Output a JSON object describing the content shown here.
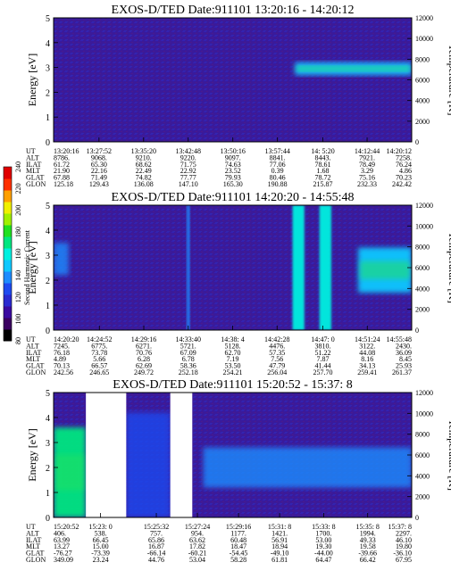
{
  "colorbar": {
    "label": "Second Harmonic Current",
    "ticks": [
      "80",
      "100",
      "120",
      "140",
      "160",
      "180",
      "200",
      "220",
      "240"
    ],
    "colors": [
      "#000000",
      "#3a0060",
      "#3a0aa0",
      "#2a2ad0",
      "#1e4af0",
      "#1e8cff",
      "#10c8ff",
      "#00f0e0",
      "#00e680",
      "#20e020",
      "#a0f000",
      "#f0f000",
      "#ffa000",
      "#ff3000",
      "#e00000"
    ]
  },
  "chart_data": [
    {
      "type": "heatmap",
      "title": "EXOS-D/TED   Date:911101   13:20:16 - 14:20:12",
      "ylabel": "Energy [eV]",
      "ylabel_right": "Temperature [K]",
      "ylim": [
        0,
        5
      ],
      "yticks": [
        "0",
        "1",
        "2",
        "3",
        "4",
        "5"
      ],
      "ylim_right": [
        0,
        12000
      ],
      "yticks_right": [
        "0",
        "2000",
        "4000",
        "6000",
        "8000",
        "10000",
        "12000"
      ],
      "background": "#3a1a9a",
      "features": [
        {
          "kind": "band",
          "x_start": "14:00:40",
          "x_end": "14:20:12",
          "e_low": 2.7,
          "e_high": 3.2,
          "level": "high",
          "color": "#14c8ff"
        }
      ],
      "ephemeris": {
        "labels": [
          "UT",
          "ALT",
          "ILAT",
          "MLT",
          "GLAT",
          "GLON"
        ],
        "columns": [
          [
            "13:20:16",
            "8786.",
            "61.72",
            "21.90",
            "67.88",
            "125.18"
          ],
          [
            "13:27:52",
            "9068.",
            "65.30",
            "22.16",
            "71.49",
            "129.43"
          ],
          [
            "13:35:20",
            "9210.",
            "68.62",
            "22.49",
            "74.82",
            "136.08"
          ],
          [
            "13:42:48",
            "9220.",
            "71.75",
            "22.92",
            "77.77",
            "147.10"
          ],
          [
            "13:50:16",
            "9097.",
            "74.63",
            "23.52",
            "79.93",
            "165.30"
          ],
          [
            "13:57:44",
            "8841.",
            "77.06",
            "0.39",
            "80.46",
            "190.88"
          ],
          [
            "14: 5:20",
            "8443.",
            "78.61",
            "1.68",
            "78.72",
            "215.87"
          ],
          [
            "14:12:44",
            "7921.",
            "78.49",
            "3.29",
            "75.16",
            "232.33"
          ],
          [
            "14:20:12",
            "7258.",
            "76.24",
            "4.86",
            "70.23",
            "242.42"
          ]
        ]
      }
    },
    {
      "type": "heatmap",
      "title": "EXOS-D/TED   Date:911101   14:20:20 - 14:55:48",
      "ylabel": "Energy [eV]",
      "ylabel_right": "Temperature [K]",
      "ylim": [
        0,
        5
      ],
      "yticks": [
        "0",
        "1",
        "2",
        "3",
        "4",
        "5"
      ],
      "ylim_right": [
        0,
        12000
      ],
      "yticks_right": [
        "0",
        "2000",
        "4000",
        "6000",
        "8000",
        "10000",
        "12000"
      ],
      "background": "#3a1a9a",
      "features": [
        {
          "kind": "blob",
          "x_start": "14:20:20",
          "x_end": "14:21:50",
          "e_low": 2.2,
          "e_high": 3.5,
          "level": "medium",
          "color": "#1e8cff"
        },
        {
          "kind": "spike",
          "x_start": "14:33:30",
          "x_end": "14:33:50",
          "e_low": 0,
          "e_high": 5,
          "level": "medium",
          "color": "#1e8cff"
        },
        {
          "kind": "spike",
          "x_start": "14:44:00",
          "x_end": "14:45:10",
          "e_low": 0,
          "e_high": 5,
          "level": "high",
          "color": "#00f0e0"
        },
        {
          "kind": "spike",
          "x_start": "14:46:40",
          "x_end": "14:47:50",
          "e_low": 0,
          "e_high": 5,
          "level": "high",
          "color": "#00f0e0"
        },
        {
          "kind": "blob",
          "x_start": "14:50:30",
          "x_end": "14:55:48",
          "e_low": 1.5,
          "e_high": 3.3,
          "level": "high",
          "color": "#10c8ff"
        }
      ],
      "ephemeris": {
        "labels": [
          "UT",
          "ALT",
          "ILAT",
          "MLT",
          "GLAT",
          "GLON"
        ],
        "columns": [
          [
            "14:20:20",
            "7245.",
            "76.18",
            "4.89",
            "70.13",
            "242.56"
          ],
          [
            "14:24:52",
            "6775.",
            "73.78",
            "5.66",
            "66.57",
            "246.65"
          ],
          [
            "14:29:16",
            "6271.",
            "70.76",
            "6.28",
            "62.69",
            "249.72"
          ],
          [
            "14:33:40",
            "5721.",
            "67.09",
            "6.78",
            "58.36",
            "252.18"
          ],
          [
            "14:38: 4",
            "5128.",
            "62.70",
            "7.19",
            "53.50",
            "254.21"
          ],
          [
            "14:42:28",
            "4476.",
            "57.35",
            "7.56",
            "47.79",
            "256.04"
          ],
          [
            "14:47: 0",
            "3810.",
            "51.22",
            "7.87",
            "41.44",
            "257.70"
          ],
          [
            "14:51:24",
            "3122.",
            "44.08",
            "8.16",
            "34.13",
            "259.41"
          ],
          [
            "14:55:48",
            "2430.",
            "36.09",
            "8.45",
            "25.93",
            "261.37"
          ]
        ]
      }
    },
    {
      "type": "heatmap",
      "title": "EXOS-D/TED   Date:911101   15:20:52 - 15:37: 8",
      "ylabel": "Energy [eV]",
      "ylabel_right": "Temperature [K]",
      "ylim": [
        0,
        5
      ],
      "yticks": [
        "0",
        "1",
        "2",
        "3",
        "4",
        "5"
      ],
      "ylim_right": [
        0,
        12000
      ],
      "yticks_right": [
        "0",
        "2000",
        "4000",
        "6000",
        "8000",
        "10000",
        "12000"
      ],
      "background": "#3a1a9a",
      "gaps": [
        {
          "x_start": "15:22:20",
          "x_end": "15:24:10"
        },
        {
          "x_start": "15:26:10",
          "x_end": "15:27:10"
        }
      ],
      "features": [
        {
          "kind": "block",
          "x_start": "15:20:52",
          "x_end": "15:22:20",
          "e_low": 0,
          "e_high": 3.6,
          "level": "high",
          "color": "#00e680"
        },
        {
          "kind": "block",
          "x_start": "15:24:10",
          "x_end": "15:26:10",
          "e_low": 0,
          "e_high": 4.2,
          "level": "medium",
          "color": "#1e4af0"
        },
        {
          "kind": "band",
          "x_start": "15:27:40",
          "x_end": "15:37: 8",
          "e_low": 1.2,
          "e_high": 2.8,
          "level": "medium",
          "color": "#1e8cff"
        }
      ],
      "ephemeris": {
        "labels": [
          "UT",
          "ALT",
          "ILAT",
          "MLT",
          "GLAT",
          "GLON"
        ],
        "columns": [
          [
            "15:20:52",
            "406.",
            "63.99",
            "13.27",
            "-76.27",
            "349.09"
          ],
          [
            "15:23: 0",
            "538.",
            "66.45",
            "15.00",
            "-73.39",
            "23.24"
          ],
          [
            "15:25:32",
            "757.",
            "65.86",
            "16.87",
            "-66.14",
            "44.76"
          ],
          [
            "15:27:24",
            "954.",
            "63.62",
            "17.82",
            "-60.21",
            "53.04"
          ],
          [
            "15:29:16",
            "1177.",
            "60.48",
            "18.47",
            "-54.45",
            "58.28"
          ],
          [
            "15:31: 8",
            "1421.",
            "56.91",
            "18.94",
            "-49.10",
            "61.81"
          ],
          [
            "15:33: 8",
            "1700.",
            "53.00",
            "19.30",
            "-44.00",
            "64.47"
          ],
          [
            "15:35: 8",
            "1994.",
            "49.33",
            "19.58",
            "-39.66",
            "66.42"
          ],
          [
            "15:37: 8",
            "2297.",
            "46.10",
            "19.80",
            "-36.10",
            "67.95"
          ]
        ]
      }
    }
  ]
}
